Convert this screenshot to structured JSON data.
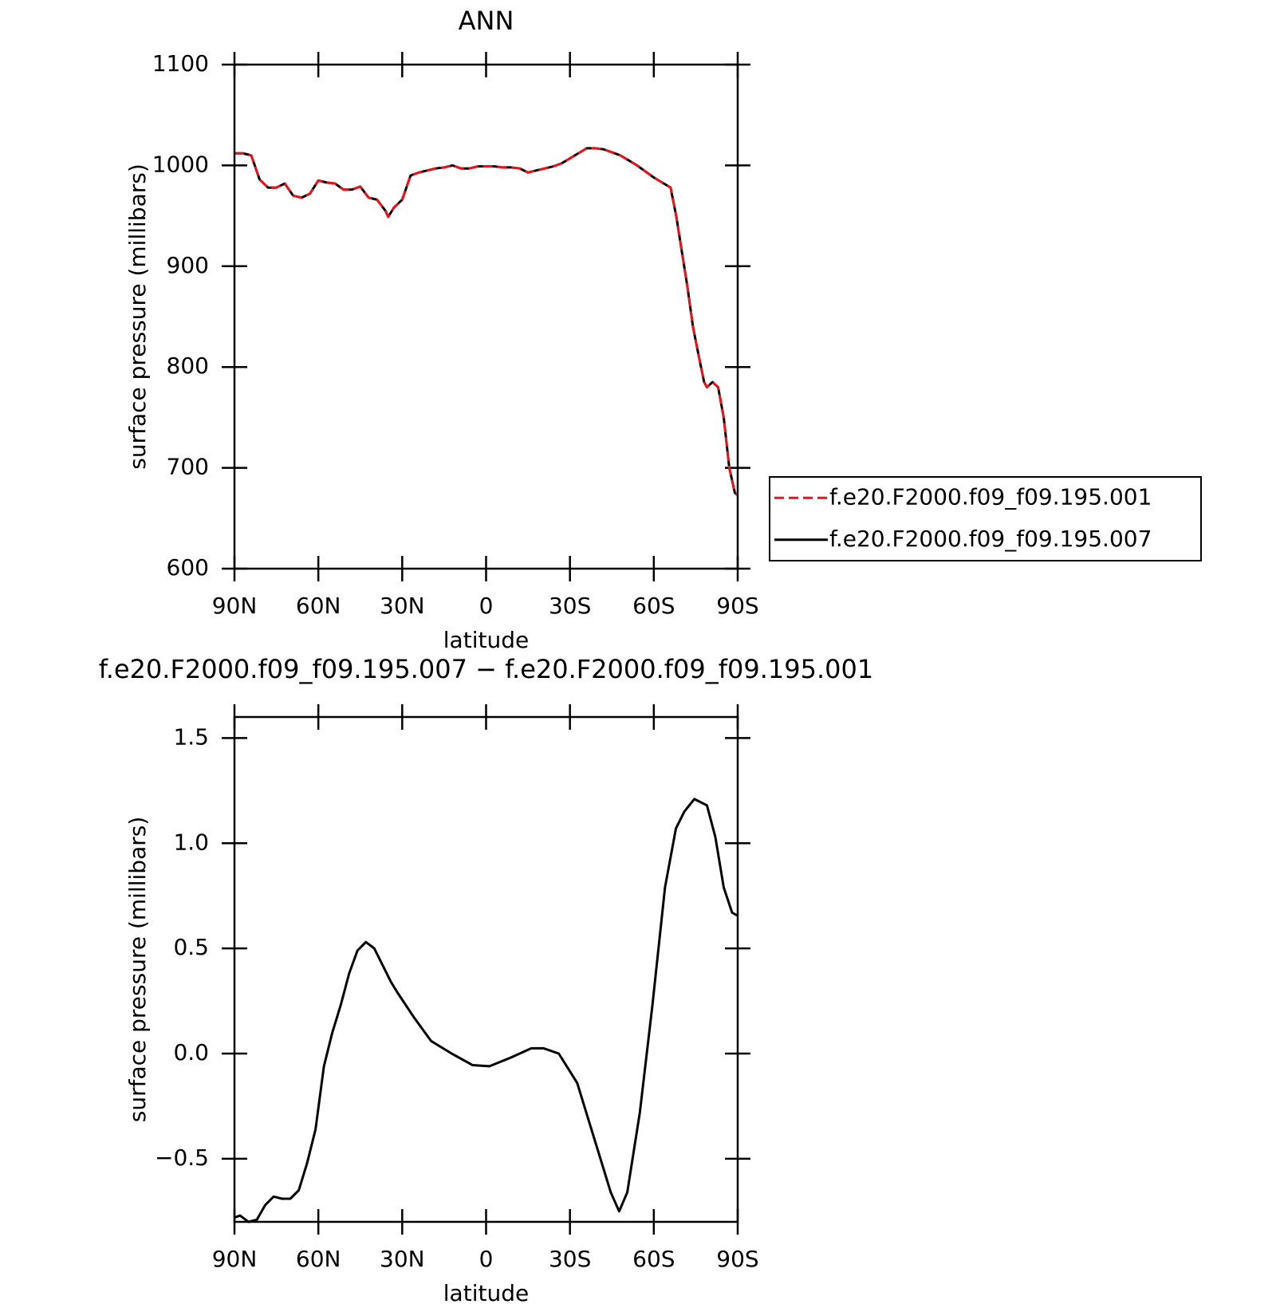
{
  "chart_data": [
    {
      "type": "line",
      "title": "ANN",
      "xlabel": "latitude",
      "ylabel": "surface pressure (millibars)",
      "xlim": [
        90,
        -90
      ],
      "ylim": [
        600,
        1100
      ],
      "xticks": [
        {
          "value": 90,
          "label": "90N"
        },
        {
          "value": 60,
          "label": "60N"
        },
        {
          "value": 30,
          "label": "30N"
        },
        0,
        {
          "value": -30,
          "label": "30S"
        },
        {
          "value": -60,
          "label": "60S"
        },
        {
          "value": -90,
          "label": "90S"
        }
      ],
      "yticks": [
        600,
        700,
        800,
        900,
        1000,
        1100
      ],
      "legend": "right",
      "x": [
        90,
        87,
        84,
        81,
        78,
        75,
        72,
        69,
        66,
        63,
        60,
        57,
        54,
        51,
        48,
        45,
        42,
        39,
        36,
        35,
        33,
        30,
        27,
        24,
        21,
        18,
        15,
        12,
        9,
        6,
        3,
        0,
        -3,
        -6,
        -9,
        -12,
        -15,
        -18,
        -21,
        -24,
        -27,
        -30,
        -33,
        -36,
        -39,
        -42,
        -45,
        -48,
        -51,
        -54,
        -57,
        -60,
        -63,
        -66,
        -68,
        -70,
        -72,
        -74,
        -76,
        -78,
        -79,
        -81,
        -83,
        -85,
        -87,
        -89,
        -90
      ],
      "series": [
        {
          "name": "f.e20.F2000.f09_f09.195.001",
          "color": "#e8141c",
          "line_style": "dashed",
          "values": [
            1012,
            1012,
            1010,
            986,
            978,
            978,
            982,
            970,
            968,
            972,
            985,
            983,
            982,
            976,
            976,
            979,
            968,
            966,
            955,
            949,
            958,
            966,
            990,
            993,
            995,
            997,
            998,
            1000,
            997,
            997,
            999,
            999,
            999,
            998,
            998,
            997,
            993,
            995,
            997,
            999,
            1002,
            1007,
            1012,
            1017,
            1017,
            1016,
            1013,
            1010,
            1005,
            1000,
            994,
            988,
            983,
            978,
            950,
            915,
            880,
            840,
            812,
            785,
            780,
            785,
            780,
            750,
            700,
            675,
            673
          ]
        },
        {
          "name": "f.e20.F2000.f09_f09.195.007",
          "color": "#000000",
          "line_style": "solid",
          "values": [
            1012,
            1012,
            1010,
            986,
            978,
            978,
            982,
            970,
            968,
            972,
            985,
            983,
            982,
            976,
            976,
            979,
            968,
            966,
            955,
            949,
            958,
            966,
            990,
            993,
            995,
            997,
            998,
            1000,
            997,
            997,
            999,
            999,
            999,
            998,
            998,
            997,
            993,
            995,
            997,
            999,
            1002,
            1007,
            1012,
            1017,
            1017,
            1016,
            1013,
            1010,
            1005,
            1000,
            994,
            988,
            983,
            978,
            950,
            915,
            880,
            840,
            812,
            785,
            780,
            785,
            780,
            750,
            700,
            675,
            673
          ]
        }
      ]
    },
    {
      "type": "line",
      "title": "f.e20.F2000.f09_f09.195.007 − f.e20.F2000.f09_f09.195.001",
      "xlabel": "latitude",
      "ylabel": "surface pressure (millibars)",
      "xlim": [
        90,
        -90
      ],
      "ylim": [
        -0.8,
        1.6
      ],
      "xticks": [
        {
          "value": 90,
          "label": "90N"
        },
        {
          "value": 60,
          "label": "60N"
        },
        {
          "value": 30,
          "label": "30N"
        },
        0,
        {
          "value": -30,
          "label": "30S"
        },
        {
          "value": -60,
          "label": "60S"
        },
        {
          "value": -90,
          "label": "90S"
        }
      ],
      "yticks": [
        {
          "value": -0.5,
          "label": "−0.5"
        },
        {
          "value": 0,
          "label": "0.0"
        },
        0.5,
        {
          "value": 1,
          "label": "1.0"
        },
        1.5
      ],
      "x": [
        90,
        88,
        85,
        82,
        79,
        76,
        73,
        70,
        67,
        64,
        61,
        58,
        55,
        52,
        49,
        46,
        43,
        40,
        37,
        34,
        31.7,
        25.7,
        19.7,
        12.3,
        4.8,
        -1.2,
        -8.7,
        -16.2,
        -20.6,
        -26,
        -32.6,
        -38.6,
        -44.6,
        -47.6,
        -50.5,
        -55,
        -59.5,
        -64,
        -67.9,
        -70.9,
        -74.5,
        -79,
        -82,
        -85,
        -88,
        -90
      ],
      "series": [
        {
          "color": "#000000",
          "line_style": "solid",
          "values": [
            -0.78,
            -0.77,
            -0.8,
            -0.79,
            -0.72,
            -0.68,
            -0.69,
            -0.69,
            -0.65,
            -0.52,
            -0.36,
            -0.06,
            0.1,
            0.23,
            0.38,
            0.49,
            0.53,
            0.5,
            0.42,
            0.34,
            0.29,
            0.17,
            0.06,
            0,
            -0.055,
            -0.06,
            -0.02,
            0.025,
            0.025,
            0,
            -0.14,
            -0.4,
            -0.66,
            -0.75,
            -0.66,
            -0.28,
            0.23,
            0.79,
            1.07,
            1.15,
            1.21,
            1.18,
            1.03,
            0.79,
            0.67,
            0.655
          ]
        }
      ]
    }
  ]
}
